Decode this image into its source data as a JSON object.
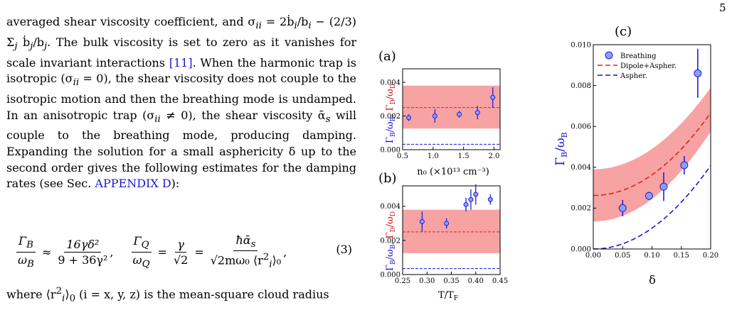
{
  "page_number": "5",
  "paragraph": {
    "line1": "averaged shear viscosity coefficient, and σ",
    "line1b": "ii",
    "line1c": " = 2ḃ",
    "line1d": "i",
    "line1e": "/b",
    "line1f": "i",
    "line1g": " −",
    "line2": "(2/3) Σ",
    "line2b": "j",
    "line2c": " ḃ",
    "line2d": "j",
    "line2e": "/b",
    "line2f": "j",
    "line2g": ". The bulk viscosity is set to zero as it vanishes for scale invariant interactions ",
    "cite": "[11]",
    "line3": ". When the harmonic trap is isotropic (σ",
    "line3b": "ii",
    "line3c": " = 0), the shear viscosity does not couple to the isotropic motion and then the breathing mode is undamped. In an anisotropic trap (σ",
    "line3d": "ii",
    "line3e": " ≠ 0), the shear viscosity ᾱ",
    "line3f": "s",
    "line3g": " will couple to the breathing mode, producing damping. Expanding the solution for a small asphericity δ up to the second order gives the following estimates for the damping rates (see Sec. ",
    "appendix_link": "APPENDIX D",
    "line3h": "):"
  },
  "equation": {
    "lhs1_num": "Γ",
    "lhs1_num_sub": "B",
    "lhs1_den": "ω",
    "lhs1_den_sub": "B",
    "approx": "≈",
    "rhs1_num": "16γδ²",
    "rhs1_den": "9 + 36γ²",
    "comma": ",",
    "lhs2_num": "Γ",
    "lhs2_num_sub": "Q",
    "lhs2_den": "ω",
    "lhs2_den_sub": "Q",
    "eq1": "=",
    "rhs2_num": "γ",
    "rhs2_den": "√2",
    "eq2": "=",
    "rhs3_num": "ħᾱ",
    "rhs3_num_sub": "s",
    "rhs3_den": "√2mω₀ ⟨r",
    "rhs3_den_sub": "i",
    "rhs3_den_sup": "2",
    "rhs3_den_end": "⟩₀",
    "rhs3_den_end_sub": "0",
    "trailing_comma": ",",
    "number": "(3)"
  },
  "after_eq": {
    "t1": "where ⟨r",
    "t1_sup": "2",
    "t1_sub": "i",
    "t1b": "⟩",
    "t1c": "0",
    "t2": " (i = x, y, z) is the mean-square cloud radius"
  },
  "panels": {
    "a": {
      "label": "(a)",
      "ylabel": "Γ_B/ω_B, Γ_D/ω_D",
      "xlabel": "n₀ (×10¹³ cm⁻³)",
      "xticks": [
        "0.5",
        "1.0",
        "1.5",
        "2.0"
      ],
      "yticks": [
        "0.000",
        "0.002",
        "0.004"
      ]
    },
    "b": {
      "label": "(b)",
      "ylabel": "Γ_B/ω_B, Γ_D/ω_D",
      "xlabel": "T/T",
      "xlabel_sub": "F",
      "xticks": [
        "0.25",
        "0.30",
        "0.35",
        "0.40",
        "0.45"
      ],
      "yticks": [
        "0.000",
        "0.002",
        "0.004"
      ]
    },
    "c": {
      "label": "(c)",
      "ylabel": "Γ_B/ω_B",
      "xlabel": "δ",
      "xticks": [
        "0.00",
        "0.05",
        "0.10",
        "0.15",
        "0.20"
      ],
      "yticks": [
        "0.000",
        "0.002",
        "0.004",
        "0.006",
        "0.008",
        "0.010"
      ],
      "legend": [
        "Breathing",
        "Dipole+Aspher.",
        "Aspher."
      ]
    }
  },
  "colors": {
    "band": "#f7a3a3",
    "red_line": "#e0201e",
    "blue_line": "#1515d8",
    "marker_fill": "#8c9ef2",
    "marker_edge": "#1e1edc",
    "ylabel_blue": "#1515d8",
    "ylabel_red": "#d21414",
    "link": "#1a1ad6"
  },
  "chart_data": [
    {
      "type": "scatter",
      "panel": "a",
      "xlim": [
        0.5,
        2.1
      ],
      "ylim": [
        0,
        0.0048
      ],
      "band": [
        0.00125,
        0.0038
      ],
      "red_dashed_y": 0.0025,
      "blue_dashed_y": 0.00032,
      "points": [
        {
          "x": 0.6,
          "y": 0.0019,
          "err": 0.0002
        },
        {
          "x": 1.03,
          "y": 0.002,
          "err": 0.0004
        },
        {
          "x": 1.43,
          "y": 0.0021,
          "err": 0.0002
        },
        {
          "x": 1.73,
          "y": 0.0022,
          "err": 0.0004
        },
        {
          "x": 1.98,
          "y": 0.0031,
          "err": 0.0006
        }
      ]
    },
    {
      "type": "scatter",
      "panel": "b",
      "xlim": [
        0.25,
        0.45
      ],
      "ylim": [
        0,
        0.0052
      ],
      "band": [
        0.00125,
        0.0038
      ],
      "red_dashed_y": 0.0025,
      "blue_dashed_y": 0.00035,
      "points": [
        {
          "x": 0.29,
          "y": 0.0031,
          "err": 0.0006
        },
        {
          "x": 0.34,
          "y": 0.003,
          "err": 0.0003
        },
        {
          "x": 0.38,
          "y": 0.0041,
          "err": 0.0004
        },
        {
          "x": 0.39,
          "y": 0.0044,
          "err": 0.0006
        },
        {
          "x": 0.4,
          "y": 0.0047,
          "err": 0.0006
        },
        {
          "x": 0.43,
          "y": 0.0044,
          "err": 0.0003
        }
      ]
    },
    {
      "type": "scatter",
      "panel": "c",
      "xlim": [
        0,
        0.2
      ],
      "ylim": [
        0,
        0.01
      ],
      "band_lower": {
        "y0": 0.00135,
        "k": 0.11
      },
      "band_upper": {
        "y0": 0.0039,
        "k": 0.1
      },
      "red_curve": {
        "y0": 0.00262,
        "k": 0.101
      },
      "blue_curve": {
        "y0": 0.0,
        "k": 0.102
      },
      "points": [
        {
          "x": 0.05,
          "y": 0.002,
          "err": 0.0004
        },
        {
          "x": 0.095,
          "y": 0.0026,
          "err": 0.0002
        },
        {
          "x": 0.12,
          "y": 0.00305,
          "err": 0.0007
        },
        {
          "x": 0.155,
          "y": 0.0041,
          "err": 0.00045
        },
        {
          "x": 0.178,
          "y": 0.0086,
          "err": 0.0012
        }
      ]
    }
  ]
}
